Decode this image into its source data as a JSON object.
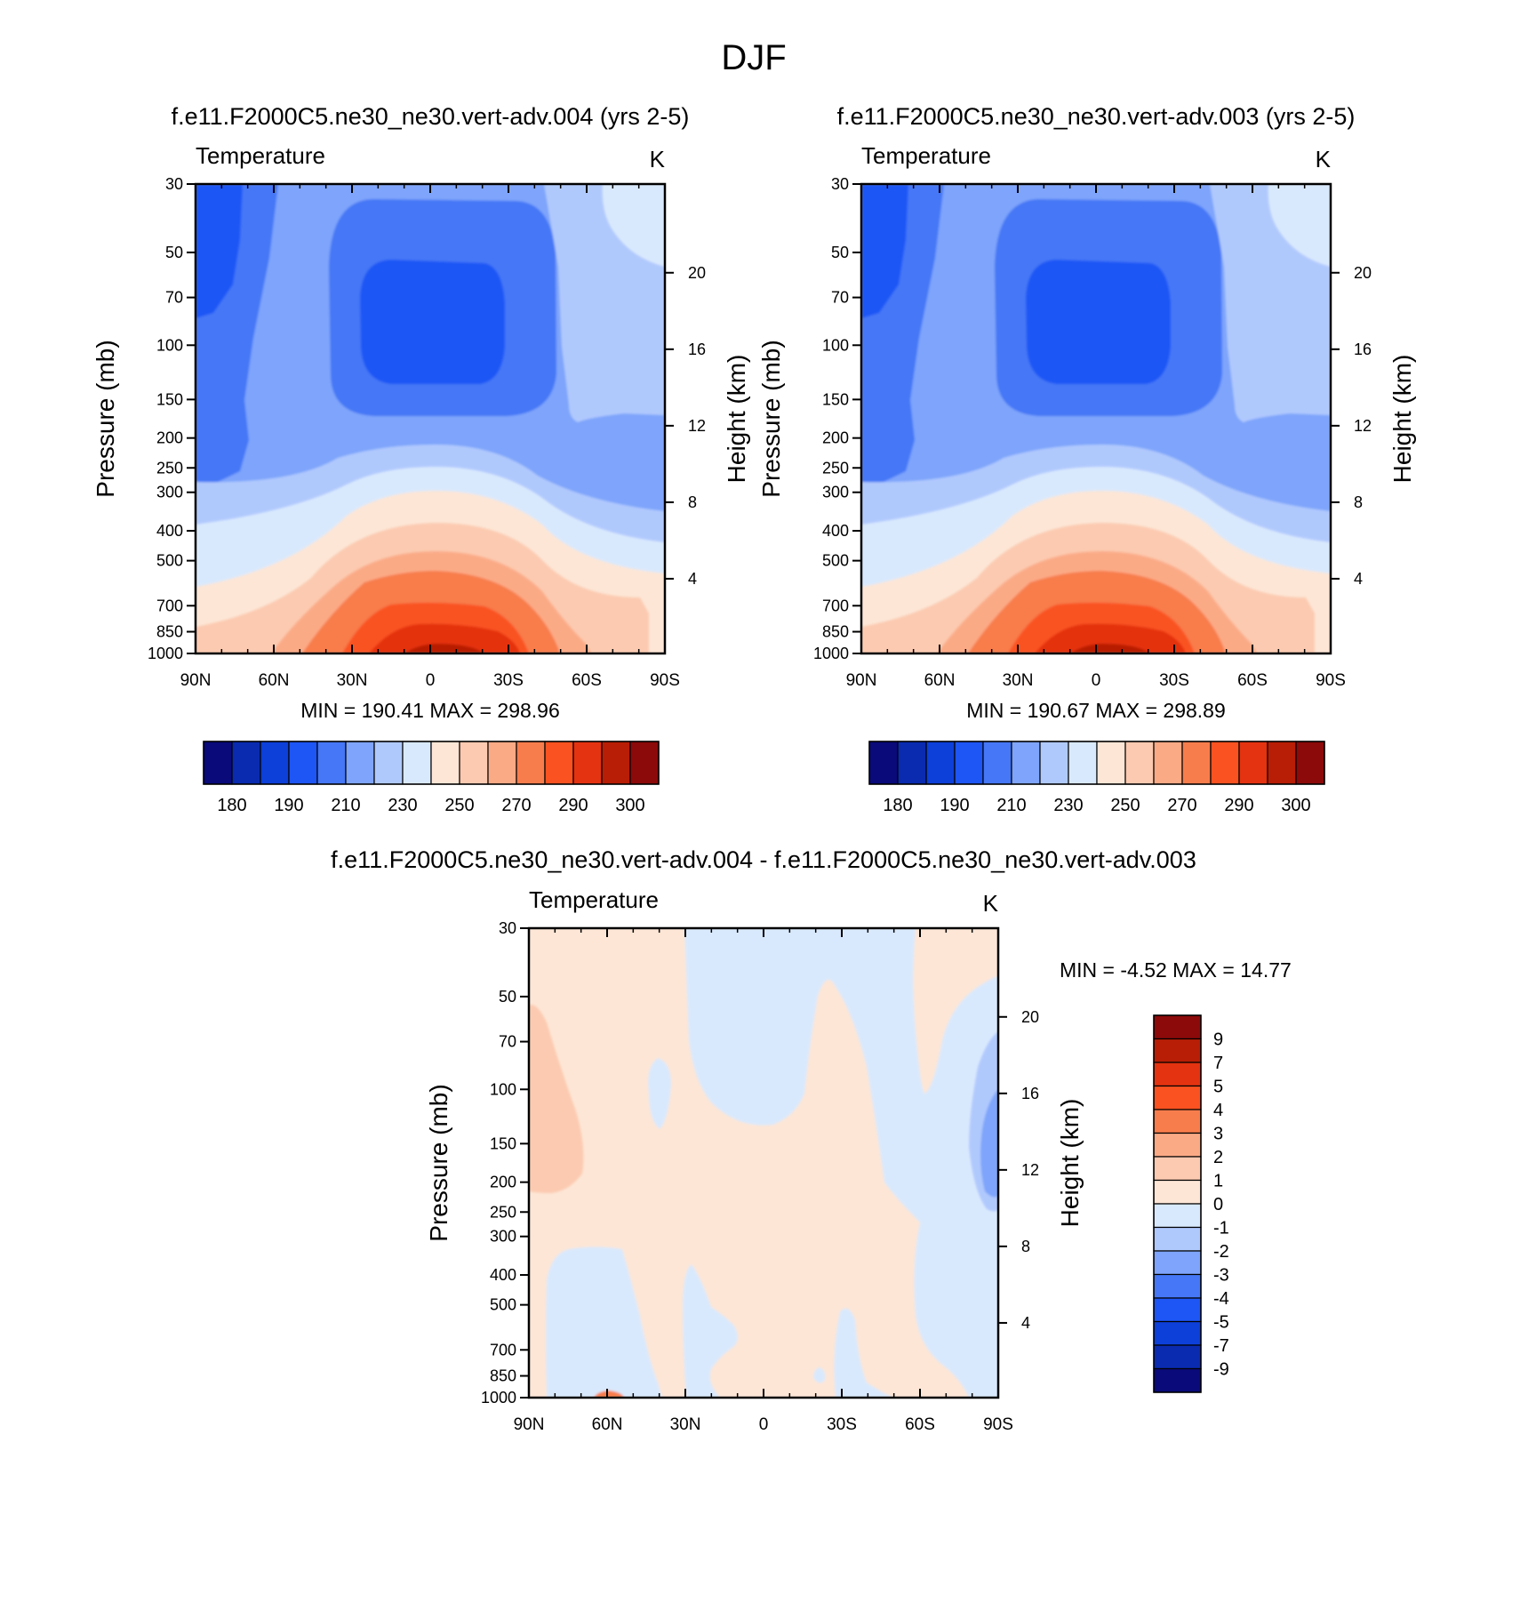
{
  "figure": {
    "title": "DJF"
  },
  "chart_data": [
    {
      "type": "heatmap",
      "title": "f.e11.F2000C5.ne30_ne30.vert-adv.004 (yrs 2-5)",
      "left_title": "Temperature",
      "right_title": "K",
      "ylabel": "Pressure (mb)",
      "ylabel_right": "Height (km)",
      "x_ticks": [
        "90N",
        "60N",
        "30N",
        "0",
        "30S",
        "60S",
        "90S"
      ],
      "y_ticks": [
        "30",
        "50",
        "70",
        "100",
        "150",
        "200",
        "250",
        "300",
        "400",
        "500",
        "700",
        "850",
        "1000"
      ],
      "height_ticks": [
        "20",
        "16",
        "12",
        "8",
        "4"
      ],
      "stats": "MIN = 190.41  MAX = 298.96",
      "min": 190.41,
      "max": 298.96,
      "contour_levels": [
        180,
        185,
        190,
        200,
        210,
        220,
        230,
        240,
        250,
        260,
        270,
        280,
        290,
        295,
        300
      ],
      "colorbar_labels": [
        "180",
        "190",
        "210",
        "230",
        "250",
        "270",
        "290",
        "300"
      ],
      "colors": [
        "#0a0a7a",
        "#0a2bb0",
        "#0d3fd9",
        "#1e56f5",
        "#4577f6",
        "#7ea4fb",
        "#b0c9fd",
        "#d9e9fd",
        "#fde6d6",
        "#fccab0",
        "#fbaa86",
        "#f87d4c",
        "#fa5220",
        "#e43310",
        "#b81e05",
        "#8c0a0a"
      ]
    },
    {
      "type": "heatmap",
      "title": "f.e11.F2000C5.ne30_ne30.vert-adv.003 (yrs 2-5)",
      "left_title": "Temperature",
      "right_title": "K",
      "ylabel": "Pressure (mb)",
      "ylabel_right": "Height (km)",
      "x_ticks": [
        "90N",
        "60N",
        "30N",
        "0",
        "30S",
        "60S",
        "90S"
      ],
      "y_ticks": [
        "30",
        "50",
        "70",
        "100",
        "150",
        "200",
        "250",
        "300",
        "400",
        "500",
        "700",
        "850",
        "1000"
      ],
      "height_ticks": [
        "20",
        "16",
        "12",
        "8",
        "4"
      ],
      "stats": "MIN = 190.67  MAX = 298.89",
      "min": 190.67,
      "max": 298.89,
      "contour_levels": [
        180,
        185,
        190,
        200,
        210,
        220,
        230,
        240,
        250,
        260,
        270,
        280,
        290,
        295,
        300
      ],
      "colorbar_labels": [
        "180",
        "190",
        "210",
        "230",
        "250",
        "270",
        "290",
        "300"
      ],
      "colors": [
        "#0a0a7a",
        "#0a2bb0",
        "#0d3fd9",
        "#1e56f5",
        "#4577f6",
        "#7ea4fb",
        "#b0c9fd",
        "#d9e9fd",
        "#fde6d6",
        "#fccab0",
        "#fbaa86",
        "#f87d4c",
        "#fa5220",
        "#e43310",
        "#b81e05",
        "#8c0a0a"
      ]
    },
    {
      "type": "heatmap",
      "title": "f.e11.F2000C5.ne30_ne30.vert-adv.004 - f.e11.F2000C5.ne30_ne30.vert-adv.003",
      "left_title": "Temperature",
      "right_title": "K",
      "ylabel": "Pressure (mb)",
      "ylabel_right": "Height (km)",
      "x_ticks": [
        "90N",
        "60N",
        "30N",
        "0",
        "30S",
        "60S",
        "90S"
      ],
      "y_ticks": [
        "30",
        "50",
        "70",
        "100",
        "150",
        "200",
        "250",
        "300",
        "400",
        "500",
        "700",
        "850",
        "1000"
      ],
      "height_ticks": [
        "20",
        "16",
        "12",
        "8",
        "4"
      ],
      "stats": "MIN =  -4.52  MAX =  14.77",
      "min": -4.52,
      "max": 14.77,
      "contour_levels": [
        9,
        7,
        5,
        4,
        3,
        2,
        1,
        0,
        -1,
        -2,
        -3,
        -4,
        -5,
        -7,
        -9
      ],
      "colorbar_labels": [
        "9",
        "7",
        "5",
        "4",
        "3",
        "2",
        "1",
        "0",
        "-1",
        "-2",
        "-3",
        "-4",
        "-5",
        "-7",
        "-9"
      ],
      "colors": [
        "#8c0a0a",
        "#b81e05",
        "#e43310",
        "#fa5220",
        "#f87d4c",
        "#fbaa86",
        "#fccab0",
        "#fde6d6",
        "#d9e9fd",
        "#b0c9fd",
        "#7ea4fb",
        "#4577f6",
        "#1e56f5",
        "#0d3fd9",
        "#0a2bb0",
        "#0a0a7a"
      ]
    }
  ]
}
